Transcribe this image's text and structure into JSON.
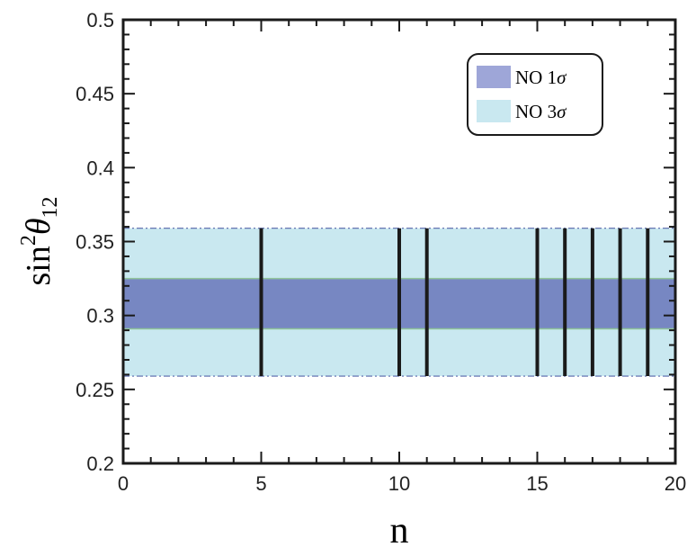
{
  "chart_data": {
    "type": "band-and-lines",
    "xlabel": "n",
    "ylabel": "sin²θ₁₂",
    "ylabel_main": "sin",
    "ylabel_sup": "2",
    "ylabel_theta": "θ",
    "ylabel_sub": "12",
    "xlim": [
      0,
      20
    ],
    "ylim": [
      0.2,
      0.5
    ],
    "x_ticks": [
      "0",
      "5",
      "10",
      "15",
      "20"
    ],
    "y_ticks": [
      "0.2",
      "0.25",
      "0.3",
      "0.35",
      "0.4",
      "0.45",
      "0.5"
    ],
    "x_tick_values": [
      0,
      5,
      10,
      15,
      20
    ],
    "y_tick_values": [
      0.2,
      0.25,
      0.3,
      0.35,
      0.4,
      0.45,
      0.5
    ],
    "bands": [
      {
        "name": "NO 3σ",
        "ymin": 0.259,
        "ymax": 0.359,
        "color": "#c9e8f0"
      },
      {
        "name": "NO 1σ",
        "ymin": 0.291,
        "ymax": 0.325,
        "color": "#7787c2"
      }
    ],
    "vertical_lines": {
      "x": [
        5,
        10,
        11,
        15,
        16,
        17,
        18,
        19
      ],
      "ymin": 0.259,
      "ymax": 0.359,
      "color": "#1a1a1a"
    },
    "legend": {
      "placement": "top-right",
      "entries": [
        {
          "label_main": "NO 1",
          "label_sigma": "σ",
          "color": "#9ea6d8"
        },
        {
          "label_main": "NO 3",
          "label_sigma": "σ",
          "color": "#c9e8f0"
        }
      ]
    },
    "grid": false
  }
}
